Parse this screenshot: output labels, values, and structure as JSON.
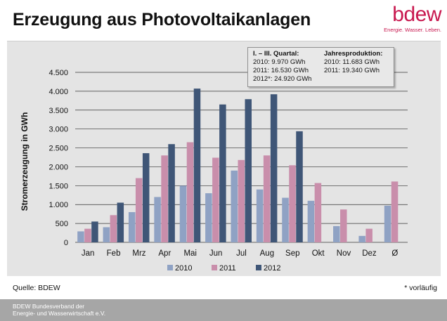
{
  "header": {
    "title": "Erzeugung aus Photovoltaikanlagen",
    "logo_word": "bdew",
    "logo_tagline": "Energie. Wasser. Leben."
  },
  "infobox": {
    "left_heading": "I. – III. Quartal:",
    "left_lines": [
      "2010:   9.970 GWh",
      "2011: 16.530 GWh",
      "2012*: 24.920 GWh"
    ],
    "right_heading": "Jahresproduktion:",
    "right_lines": [
      "2010: 11.683 GWh",
      "2011: 19.340 GWh"
    ]
  },
  "footer": {
    "source": "Quelle: BDEW",
    "note": "* vorläufig",
    "org_line1": "BDEW Bundesverband der",
    "org_line2": "Energie- und Wasserwirtschaft e.V."
  },
  "colors": {
    "s2010": "#8fa2c4",
    "s2011": "#c98eab",
    "s2012": "#3f5677",
    "panel": "#e4e4e4",
    "brand": "#c8184f"
  },
  "chart_data": {
    "type": "bar",
    "ylabel": "Stromerzeugung in GWh",
    "ylim": [
      0,
      4500
    ],
    "yticks": [
      0,
      500,
      1000,
      1500,
      2000,
      2500,
      3000,
      3500,
      4000,
      4500
    ],
    "ytick_labels": [
      "0",
      "500",
      "1.000",
      "1.500",
      "2.000",
      "2.500",
      "3.000",
      "3.500",
      "4.000",
      "4.500"
    ],
    "grid": true,
    "legend_position": "bottom-center",
    "categories": [
      "Jan",
      "Feb",
      "Mrz",
      "Apr",
      "Mai",
      "Jun",
      "Jul",
      "Aug",
      "Sep",
      "Okt",
      "Nov",
      "Dez",
      "Ø"
    ],
    "series": [
      {
        "name": "2010",
        "color": "#8fa2c4",
        "values": [
          290,
          400,
          800,
          1200,
          1500,
          1300,
          1900,
          1400,
          1180,
          1100,
          430,
          170,
          970
        ]
      },
      {
        "name": "2011",
        "color": "#c98eab",
        "values": [
          360,
          720,
          1700,
          2300,
          2650,
          2240,
          2180,
          2300,
          2040,
          1570,
          870,
          360,
          1610
        ]
      },
      {
        "name": "2012",
        "color": "#3f5677",
        "values": [
          550,
          1050,
          2360,
          2600,
          4070,
          3650,
          3790,
          3920,
          2940,
          null,
          null,
          null,
          null
        ]
      }
    ]
  }
}
